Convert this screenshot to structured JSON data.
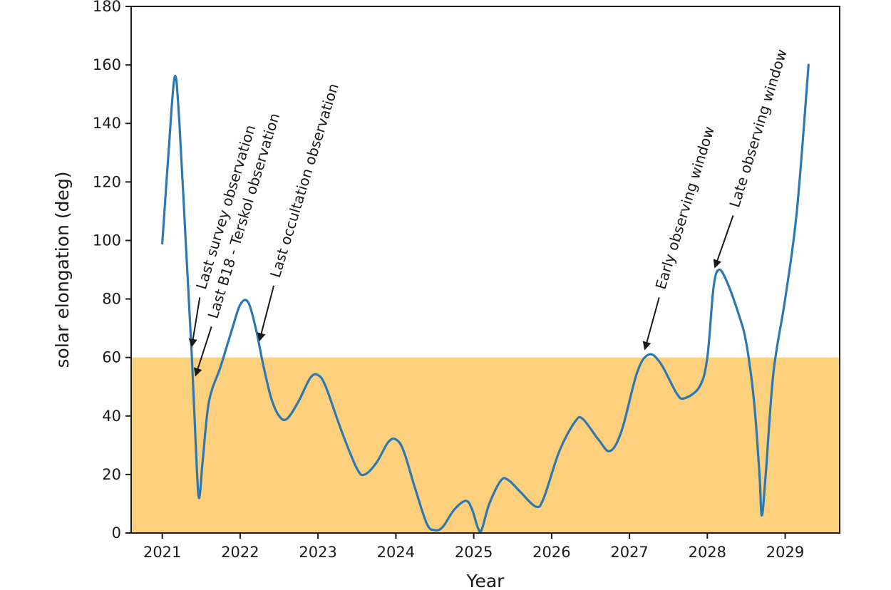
{
  "chart_data": {
    "type": "line",
    "title": "",
    "xlabel": "Year",
    "ylabel": "solar elongation (deg)",
    "xlim": [
      2020.6,
      2029.7
    ],
    "ylim": [
      0,
      180
    ],
    "xticks": [
      2021,
      2022,
      2023,
      2024,
      2025,
      2026,
      2027,
      2028,
      2029
    ],
    "yticks": [
      0,
      20,
      40,
      60,
      80,
      100,
      120,
      140,
      160,
      180
    ],
    "grid": false,
    "colors": {
      "line": "#2e78b0",
      "band": "#fdd07d",
      "axis": "#1a1a1a"
    },
    "shaded_band": {
      "y_from": 0,
      "y_to": 60
    },
    "series": [
      {
        "points": [
          [
            2021.0,
            99
          ],
          [
            2021.08,
            130
          ],
          [
            2021.16,
            156
          ],
          [
            2021.22,
            140
          ],
          [
            2021.3,
            100
          ],
          [
            2021.38,
            60
          ],
          [
            2021.43,
            30
          ],
          [
            2021.47,
            12
          ],
          [
            2021.52,
            25
          ],
          [
            2021.6,
            45
          ],
          [
            2021.75,
            57
          ],
          [
            2021.9,
            70
          ],
          [
            2022.0,
            78
          ],
          [
            2022.1,
            79
          ],
          [
            2022.2,
            70
          ],
          [
            2022.3,
            57
          ],
          [
            2022.4,
            46
          ],
          [
            2022.5,
            40
          ],
          [
            2022.6,
            39
          ],
          [
            2022.75,
            45
          ],
          [
            2022.9,
            53
          ],
          [
            2023.0,
            54
          ],
          [
            2023.1,
            50
          ],
          [
            2023.3,
            35
          ],
          [
            2023.5,
            22
          ],
          [
            2023.6,
            20
          ],
          [
            2023.75,
            24
          ],
          [
            2023.9,
            31
          ],
          [
            2024.0,
            32
          ],
          [
            2024.1,
            28
          ],
          [
            2024.25,
            15
          ],
          [
            2024.4,
            3
          ],
          [
            2024.5,
            1
          ],
          [
            2024.6,
            2
          ],
          [
            2024.75,
            8
          ],
          [
            2024.9,
            11
          ],
          [
            2024.98,
            8
          ],
          [
            2025.05,
            2
          ],
          [
            2025.1,
            1
          ],
          [
            2025.2,
            10
          ],
          [
            2025.35,
            18
          ],
          [
            2025.45,
            18
          ],
          [
            2025.6,
            14
          ],
          [
            2025.8,
            9
          ],
          [
            2025.9,
            12
          ],
          [
            2026.1,
            28
          ],
          [
            2026.3,
            38
          ],
          [
            2026.4,
            39
          ],
          [
            2026.6,
            32
          ],
          [
            2026.75,
            28
          ],
          [
            2026.9,
            35
          ],
          [
            2027.1,
            55
          ],
          [
            2027.25,
            61
          ],
          [
            2027.4,
            58
          ],
          [
            2027.6,
            48
          ],
          [
            2027.7,
            46
          ],
          [
            2027.9,
            50
          ],
          [
            2028.0,
            60
          ],
          [
            2028.08,
            84
          ],
          [
            2028.15,
            90
          ],
          [
            2028.25,
            86
          ],
          [
            2028.4,
            75
          ],
          [
            2028.5,
            65
          ],
          [
            2028.6,
            45
          ],
          [
            2028.67,
            20
          ],
          [
            2028.7,
            6
          ],
          [
            2028.75,
            20
          ],
          [
            2028.85,
            55
          ],
          [
            2029.0,
            80
          ],
          [
            2029.15,
            110
          ],
          [
            2029.3,
            160
          ]
        ]
      }
    ],
    "annotations": [
      {
        "text": "Last survey observation",
        "target": [
          2021.38,
          64
        ],
        "text_anchor": [
          2021.5,
          82
        ]
      },
      {
        "text": "Last B18 - Terskol observation",
        "target": [
          2021.43,
          54
        ],
        "text_anchor": [
          2021.65,
          72
        ]
      },
      {
        "text": "Last occultation observation",
        "target": [
          2022.25,
          66
        ],
        "text_anchor": [
          2022.45,
          86
        ]
      },
      {
        "text": "Early observing window",
        "target": [
          2027.2,
          63
        ],
        "text_anchor": [
          2027.4,
          82
        ]
      },
      {
        "text": "Late observing window",
        "target": [
          2028.1,
          91
        ],
        "text_anchor": [
          2028.35,
          110
        ]
      }
    ]
  }
}
